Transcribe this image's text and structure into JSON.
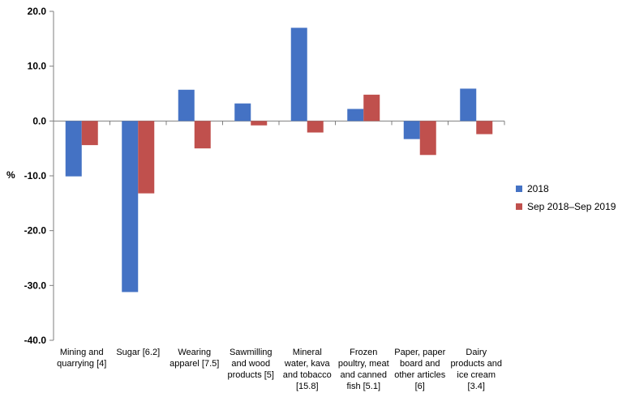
{
  "chart_data": {
    "type": "bar",
    "title": "",
    "xlabel": "",
    "ylabel": "%",
    "ylim": [
      -40,
      20
    ],
    "yticks": [
      "20.0",
      "10.0",
      "0.0",
      "-10.0",
      "-20.0",
      "-30.0",
      "-40.0"
    ],
    "grid": false,
    "legend_position": "right",
    "categories": [
      [
        "Mining and",
        "quarrying [4]"
      ],
      [
        "Sugar [6.2]"
      ],
      [
        "Wearing",
        "apparel [7.5]"
      ],
      [
        "Sawmilling",
        "and wood",
        "products [5]"
      ],
      [
        "Mineral",
        "water, kava",
        "and tobacco",
        "[15.8]"
      ],
      [
        "Frozen",
        "poultry, meat",
        "and canned",
        "fish [5.1]"
      ],
      [
        "Paper, paper",
        "board and",
        "other articles",
        "[6]"
      ],
      [
        "Dairy",
        "products and",
        "ice cream",
        "[3.4]"
      ]
    ],
    "series": [
      {
        "name": "2018",
        "color": "#4472c4",
        "values": [
          -10.1,
          -31.2,
          5.7,
          3.2,
          17.0,
          2.2,
          -3.3,
          5.9
        ]
      },
      {
        "name": "Sep 2018–Sep 2019",
        "color": "#c0504d",
        "values": [
          -4.4,
          -13.2,
          -5.0,
          -0.8,
          -2.1,
          4.8,
          -6.2,
          -2.4
        ]
      }
    ]
  }
}
